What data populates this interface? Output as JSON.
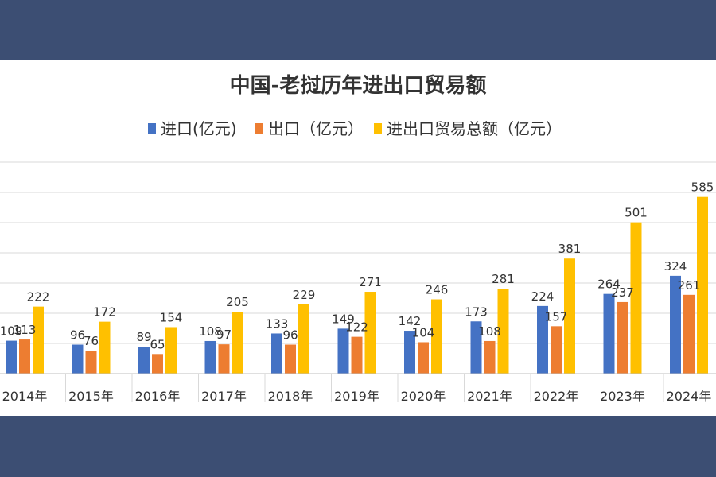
{
  "chart_data": {
    "type": "bar",
    "title": "中国-老挝历年进出口贸易额",
    "xlabel": "",
    "ylabel": "",
    "categories": [
      "2014年",
      "2015年",
      "2016年",
      "2017年",
      "2018年",
      "2019年",
      "2020年",
      "2021年",
      "2022年",
      "2023年",
      "2024年"
    ],
    "series": [
      {
        "name": "进口(亿元)",
        "color": "#4472c4",
        "values": [
          109,
          96,
          89,
          108,
          133,
          149,
          142,
          173,
          224,
          264,
          324
        ]
      },
      {
        "name": "出口（亿元）",
        "color": "#ed7d31",
        "values": [
          113,
          76,
          65,
          97,
          96,
          122,
          104,
          108,
          157,
          237,
          261
        ]
      },
      {
        "name": "进出口贸易总额（亿元）",
        "color": "#ffc000",
        "values": [
          222,
          172,
          154,
          205,
          229,
          271,
          246,
          281,
          381,
          501,
          585
        ]
      }
    ],
    "ylim": [
      0,
      700
    ],
    "grid": true,
    "legend_position": "top-center"
  }
}
